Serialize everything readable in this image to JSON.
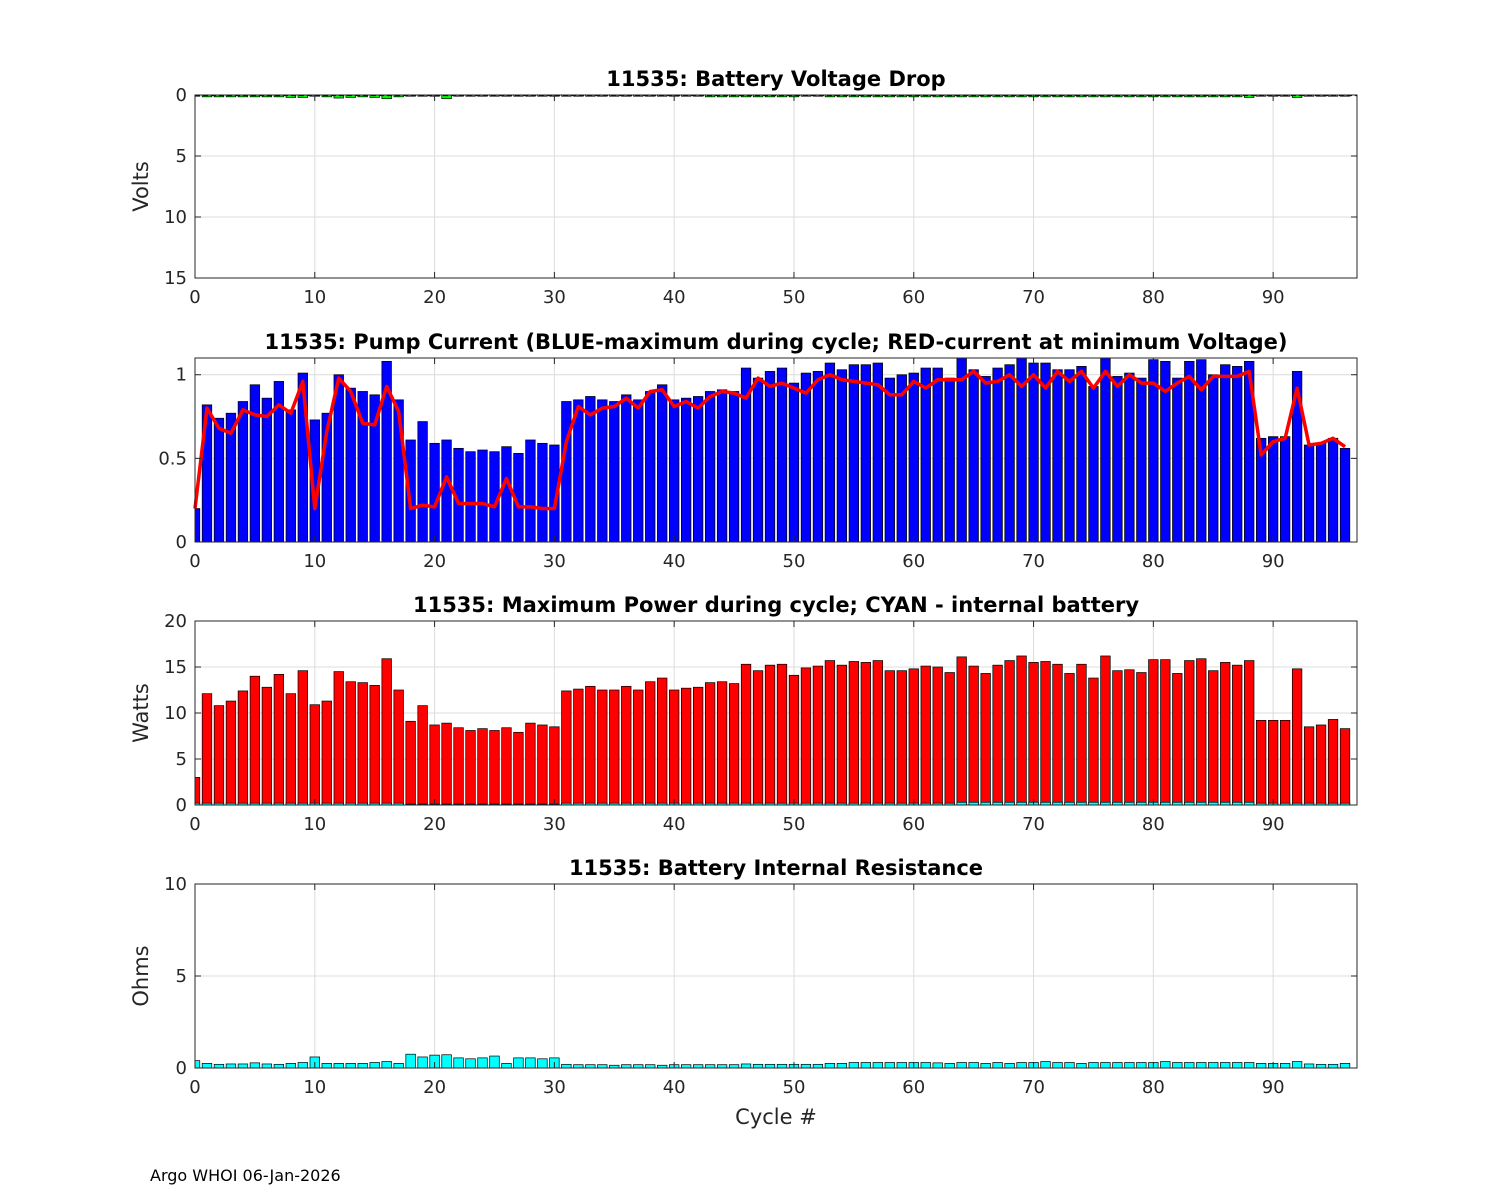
{
  "footer": "Argo WHOI 06-Jan-2026",
  "colors": {
    "voltage_bar": "#00ff00",
    "pump_max_bar": "#0000ff",
    "pump_min_line": "#ff0000",
    "power_bar": "#ff0000",
    "internal_bar": "#00ffff",
    "grid": "#dcdcdc"
  },
  "chart_data": [
    {
      "type": "bar",
      "title": "11535: Battery Voltage Drop",
      "xlabel": "",
      "ylabel": "Volts",
      "xlim": [
        0,
        97
      ],
      "ylim": [
        0,
        15
      ],
      "y_reversed": true,
      "xticks": [
        0,
        10,
        20,
        30,
        40,
        50,
        60,
        70,
        80,
        90
      ],
      "yticks": [
        0,
        5,
        10,
        15
      ],
      "grid": true,
      "x_start": 0,
      "series": [
        {
          "color": "#00ff00",
          "values": [
            0.1,
            0.15,
            0.15,
            0.15,
            0.15,
            0.15,
            0.15,
            0.15,
            0.2,
            0.2,
            0.1,
            0.15,
            0.25,
            0.2,
            0.15,
            0.2,
            0.3,
            0.15,
            0.1,
            0.1,
            0.1,
            0.3,
            0.1,
            0.1,
            0.1,
            0.1,
            0.1,
            0.1,
            0.1,
            0.1,
            0.1,
            0.1,
            0.1,
            0.1,
            0.1,
            0.1,
            0.1,
            0.1,
            0.1,
            0.1,
            0.1,
            0.1,
            0.1,
            0.15,
            0.15,
            0.15,
            0.15,
            0.15,
            0.15,
            0.15,
            0.15,
            0.1,
            0.1,
            0.15,
            0.15,
            0.15,
            0.15,
            0.15,
            0.15,
            0.15,
            0.15,
            0.15,
            0.15,
            0.15,
            0.15,
            0.15,
            0.15,
            0.15,
            0.15,
            0.15,
            0.15,
            0.15,
            0.15,
            0.15,
            0.15,
            0.15,
            0.15,
            0.15,
            0.15,
            0.15,
            0.15,
            0.15,
            0.15,
            0.15,
            0.15,
            0.15,
            0.15,
            0.15,
            0.2,
            0.1,
            0.1,
            0.1,
            0.2,
            0.1,
            0.1,
            0.1,
            0.1
          ]
        }
      ]
    },
    {
      "type": "bar",
      "title": "11535: Pump Current (BLUE-maximum during cycle; RED-current at minimum Voltage)",
      "xlabel": "",
      "ylabel": "",
      "xlim": [
        0,
        97
      ],
      "ylim": [
        0,
        1.1
      ],
      "xticks": [
        0,
        10,
        20,
        30,
        40,
        50,
        60,
        70,
        80,
        90
      ],
      "yticks": [
        0,
        0.5,
        1
      ],
      "grid": true,
      "x_start": 0,
      "series": [
        {
          "color": "#0000ff",
          "values": [
            0.2,
            0.82,
            0.74,
            0.77,
            0.84,
            0.94,
            0.86,
            0.96,
            0.79,
            1.01,
            0.73,
            0.77,
            1.0,
            0.92,
            0.9,
            0.88,
            1.08,
            0.85,
            0.61,
            0.72,
            0.59,
            0.61,
            0.56,
            0.54,
            0.55,
            0.54,
            0.57,
            0.53,
            0.61,
            0.59,
            0.58,
            0.84,
            0.85,
            0.87,
            0.85,
            0.84,
            0.88,
            0.85,
            0.9,
            0.94,
            0.85,
            0.86,
            0.87,
            0.9,
            0.91,
            0.9,
            1.04,
            0.98,
            1.02,
            1.04,
            0.95,
            1.01,
            1.02,
            1.07,
            1.03,
            1.06,
            1.06,
            1.07,
            0.98,
            1.0,
            1.01,
            1.04,
            1.04,
            0.98,
            1.1,
            1.03,
            0.99,
            1.04,
            1.06,
            1.1,
            1.07,
            1.07,
            1.03,
            1.03,
            1.05,
            0.93,
            1.1,
            0.99,
            1.01,
            0.98,
            1.09,
            1.08,
            0.98,
            1.08,
            1.09,
            1.0,
            1.06,
            1.05,
            1.08,
            0.62,
            0.63,
            0.63,
            1.02,
            0.58,
            0.59,
            0.62,
            0.56
          ]
        },
        {
          "type": "line",
          "color": "#ff0000",
          "values": [
            0.2,
            0.8,
            0.68,
            0.65,
            0.79,
            0.76,
            0.75,
            0.82,
            0.77,
            0.96,
            0.2,
            0.66,
            0.98,
            0.9,
            0.71,
            0.7,
            0.93,
            0.78,
            0.2,
            0.22,
            0.21,
            0.39,
            0.23,
            0.23,
            0.23,
            0.21,
            0.38,
            0.21,
            0.21,
            0.2,
            0.2,
            0.6,
            0.81,
            0.76,
            0.8,
            0.81,
            0.86,
            0.8,
            0.9,
            0.91,
            0.81,
            0.84,
            0.8,
            0.87,
            0.9,
            0.89,
            0.86,
            0.98,
            0.93,
            0.95,
            0.92,
            0.89,
            0.97,
            1.0,
            0.97,
            0.96,
            0.95,
            0.94,
            0.88,
            0.88,
            0.96,
            0.92,
            0.97,
            0.97,
            0.97,
            1.02,
            0.95,
            0.96,
            1.0,
            0.93,
            1.0,
            0.92,
            1.02,
            0.96,
            1.02,
            0.92,
            1.02,
            0.93,
            1.0,
            0.95,
            0.95,
            0.9,
            0.95,
            0.99,
            0.91,
            0.99,
            0.99,
            0.99,
            1.02,
            0.52,
            0.6,
            0.62,
            0.92,
            0.58,
            0.59,
            0.62,
            0.57
          ]
        }
      ]
    },
    {
      "type": "bar",
      "title": "11535: Maximum Power during cycle; CYAN - internal battery",
      "xlabel": "",
      "ylabel": "Watts",
      "xlim": [
        0,
        97
      ],
      "ylim": [
        0,
        20
      ],
      "xticks": [
        0,
        10,
        20,
        30,
        40,
        50,
        60,
        70,
        80,
        90
      ],
      "yticks": [
        0,
        5,
        10,
        15,
        20
      ],
      "grid": true,
      "x_start": 0,
      "series": [
        {
          "color": "#ff0000",
          "values": [
            3.0,
            12.1,
            10.8,
            11.3,
            12.4,
            14.0,
            12.8,
            14.2,
            12.1,
            14.6,
            10.9,
            11.3,
            14.5,
            13.4,
            13.3,
            13.0,
            15.9,
            12.5,
            9.1,
            10.8,
            8.7,
            8.9,
            8.4,
            8.1,
            8.3,
            8.1,
            8.4,
            7.9,
            8.9,
            8.7,
            8.5,
            12.4,
            12.6,
            12.9,
            12.5,
            12.5,
            12.9,
            12.5,
            13.4,
            13.8,
            12.5,
            12.7,
            12.8,
            13.3,
            13.4,
            13.2,
            15.3,
            14.6,
            15.2,
            15.3,
            14.1,
            14.9,
            15.1,
            15.7,
            15.2,
            15.6,
            15.5,
            15.7,
            14.6,
            14.6,
            14.8,
            15.1,
            15.0,
            14.4,
            16.1,
            15.1,
            14.3,
            15.2,
            15.7,
            16.2,
            15.5,
            15.6,
            15.3,
            14.3,
            15.3,
            13.8,
            16.2,
            14.6,
            14.7,
            14.4,
            15.8,
            15.8,
            14.3,
            15.7,
            15.9,
            14.6,
            15.5,
            15.2,
            15.7,
            9.2,
            9.2,
            9.2,
            14.8,
            8.5,
            8.7,
            9.3,
            8.3
          ]
        },
        {
          "color": "#00ffff",
          "values": [
            0.2,
            0.2,
            0.2,
            0.2,
            0.2,
            0.2,
            0.2,
            0.2,
            0.2,
            0.2,
            0.2,
            0.2,
            0.2,
            0.2,
            0.2,
            0.2,
            0.2,
            0.2,
            0.1,
            0.1,
            0.1,
            0.1,
            0.1,
            0.1,
            0.1,
            0.1,
            0.1,
            0.1,
            0.1,
            0.1,
            0.1,
            0.2,
            0.2,
            0.2,
            0.2,
            0.2,
            0.2,
            0.2,
            0.2,
            0.2,
            0.2,
            0.2,
            0.2,
            0.2,
            0.2,
            0.2,
            0.2,
            0.2,
            0.2,
            0.2,
            0.2,
            0.2,
            0.2,
            0.2,
            0.2,
            0.2,
            0.2,
            0.2,
            0.2,
            0.2,
            0.2,
            0.2,
            0.2,
            0.2,
            0.3,
            0.3,
            0.3,
            0.3,
            0.3,
            0.3,
            0.3,
            0.3,
            0.3,
            0.3,
            0.3,
            0.3,
            0.3,
            0.3,
            0.3,
            0.3,
            0.3,
            0.3,
            0.3,
            0.3,
            0.3,
            0.3,
            0.3,
            0.3,
            0.3,
            0.2,
            0.2,
            0.2,
            0.2,
            0.2,
            0.2,
            0.2,
            0.2
          ]
        }
      ]
    },
    {
      "type": "bar",
      "title": "11535: Battery Internal Resistance",
      "xlabel": "Cycle #",
      "ylabel": "Ohms",
      "xlim": [
        0,
        97
      ],
      "ylim": [
        0,
        10
      ],
      "xticks": [
        0,
        10,
        20,
        30,
        40,
        50,
        60,
        70,
        80,
        90
      ],
      "yticks": [
        0,
        5,
        10
      ],
      "grid": true,
      "x_start": 0,
      "series": [
        {
          "color": "#00ffff",
          "values": [
            0.4,
            0.25,
            0.2,
            0.22,
            0.22,
            0.28,
            0.22,
            0.2,
            0.25,
            0.3,
            0.6,
            0.25,
            0.25,
            0.25,
            0.25,
            0.3,
            0.35,
            0.25,
            0.75,
            0.6,
            0.7,
            0.72,
            0.55,
            0.5,
            0.55,
            0.65,
            0.25,
            0.55,
            0.55,
            0.5,
            0.55,
            0.2,
            0.18,
            0.18,
            0.18,
            0.15,
            0.18,
            0.18,
            0.18,
            0.15,
            0.18,
            0.18,
            0.18,
            0.18,
            0.18,
            0.18,
            0.22,
            0.2,
            0.2,
            0.2,
            0.2,
            0.2,
            0.2,
            0.25,
            0.25,
            0.3,
            0.3,
            0.3,
            0.3,
            0.3,
            0.3,
            0.3,
            0.28,
            0.25,
            0.3,
            0.3,
            0.25,
            0.3,
            0.25,
            0.3,
            0.3,
            0.35,
            0.3,
            0.3,
            0.25,
            0.3,
            0.3,
            0.3,
            0.3,
            0.3,
            0.3,
            0.35,
            0.3,
            0.3,
            0.3,
            0.3,
            0.3,
            0.3,
            0.3,
            0.25,
            0.25,
            0.25,
            0.35,
            0.22,
            0.2,
            0.2,
            0.25
          ]
        }
      ]
    }
  ]
}
